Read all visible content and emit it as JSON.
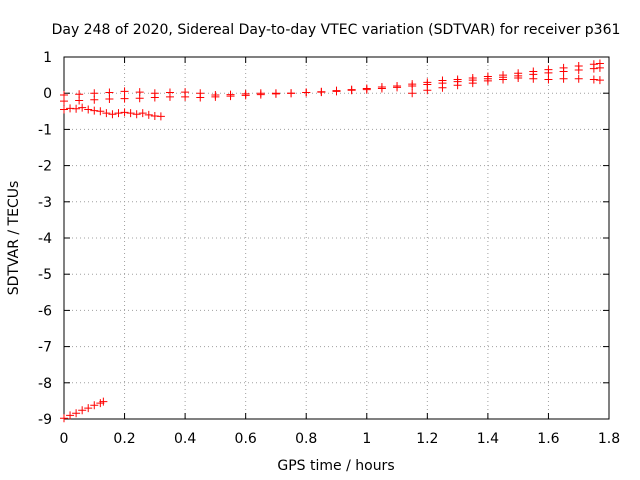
{
  "chart_data": {
    "type": "scatter",
    "title": "Day 248 of 2020, Sidereal Day-to-day VTEC variation (SDTVAR) for receiver p361",
    "xlabel": "GPS time / hours",
    "ylabel": "SDTVAR / TECUs",
    "xlim": [
      0,
      1.8
    ],
    "ylim": [
      -9,
      1
    ],
    "xticks": [
      0,
      0.2,
      0.4,
      0.6,
      0.8,
      1,
      1.2,
      1.4,
      1.6,
      1.8
    ],
    "xtick_labels": [
      "0",
      "0.2",
      "0.4",
      "0.6",
      "0.8",
      "1",
      "1.2",
      "1.4",
      "1.6",
      "1.8"
    ],
    "yticks": [
      1,
      0,
      -1,
      -2,
      -3,
      -4,
      -5,
      -6,
      -7,
      -8,
      -9
    ],
    "ytick_labels": [
      "1",
      "0",
      "-1",
      "-2",
      "-3",
      "-4",
      "-5",
      "-6",
      "-7",
      "-8",
      "-9"
    ],
    "grid": true,
    "legend": false,
    "marker": "+",
    "color": "#ff0000",
    "series": [
      {
        "name": "track-upper-main",
        "x": [
          0,
          0.05,
          0.1,
          0.15,
          0.2,
          0.25,
          0.3,
          0.35,
          0.4,
          0.45,
          0.5,
          0.55,
          0.6,
          0.65,
          0.7,
          0.75,
          0.8,
          0.85,
          0.9,
          0.95,
          1.0,
          1.05,
          1.1,
          1.15,
          1.2,
          1.25,
          1.3,
          1.35,
          1.4,
          1.45,
          1.5,
          1.55,
          1.6,
          1.65,
          1.7,
          1.75,
          1.77
        ],
        "y": [
          -0.05,
          -0.03,
          0.0,
          0.02,
          0.05,
          0.03,
          0.0,
          0.02,
          0.03,
          0.0,
          -0.05,
          -0.04,
          -0.02,
          0.0,
          0.0,
          0.0,
          0.02,
          0.04,
          0.07,
          0.1,
          0.13,
          0.17,
          0.2,
          0.25,
          0.3,
          0.35,
          0.38,
          0.42,
          0.46,
          0.5,
          0.55,
          0.6,
          0.65,
          0.7,
          0.75,
          0.8,
          0.82
        ]
      },
      {
        "name": "track-lower-main",
        "x": [
          0,
          0.05,
          0.1,
          0.15,
          0.2,
          0.25,
          0.3,
          0.35,
          0.4,
          0.45,
          0.5,
          0.55,
          0.6,
          0.65,
          0.7,
          0.75,
          0.8,
          0.85,
          0.9,
          0.95,
          1.0,
          1.05,
          1.1,
          1.15,
          1.2,
          1.25,
          1.3,
          1.35,
          1.4,
          1.45,
          1.5,
          1.55,
          1.6,
          1.65,
          1.7,
          1.75,
          1.77
        ],
        "y": [
          -0.22,
          -0.2,
          -0.18,
          -0.16,
          -0.15,
          -0.14,
          -0.12,
          -0.1,
          -0.1,
          -0.12,
          -0.1,
          -0.08,
          -0.06,
          -0.04,
          -0.02,
          0.0,
          0.02,
          0.03,
          0.05,
          0.08,
          0.1,
          0.13,
          0.16,
          0.2,
          0.24,
          0.28,
          0.32,
          0.36,
          0.4,
          0.44,
          0.48,
          0.52,
          0.56,
          0.6,
          0.64,
          0.68,
          0.7
        ]
      },
      {
        "name": "track-late",
        "x": [
          1.15,
          1.2,
          1.25,
          1.3,
          1.35,
          1.4,
          1.45,
          1.5,
          1.55,
          1.6,
          1.65,
          1.7,
          1.75,
          1.77
        ],
        "y": [
          0.0,
          0.08,
          0.15,
          0.22,
          0.28,
          0.34,
          0.38,
          0.42,
          0.4,
          0.38,
          0.4,
          0.4,
          0.38,
          0.36
        ]
      },
      {
        "name": "track-dip",
        "x": [
          0,
          0.02,
          0.04,
          0.06,
          0.08,
          0.1,
          0.12,
          0.14,
          0.16,
          0.18,
          0.2,
          0.22,
          0.24,
          0.26,
          0.28,
          0.3,
          0.32
        ],
        "y": [
          -0.45,
          -0.42,
          -0.43,
          -0.4,
          -0.45,
          -0.48,
          -0.5,
          -0.55,
          -0.58,
          -0.55,
          -0.53,
          -0.55,
          -0.58,
          -0.55,
          -0.6,
          -0.63,
          -0.64
        ]
      },
      {
        "name": "track-offset",
        "x": [
          0,
          0.02,
          0.04,
          0.06,
          0.08,
          0.1,
          0.12,
          0.13
        ],
        "y": [
          -8.98,
          -8.9,
          -8.84,
          -8.76,
          -8.7,
          -8.62,
          -8.56,
          -8.52
        ]
      }
    ]
  }
}
